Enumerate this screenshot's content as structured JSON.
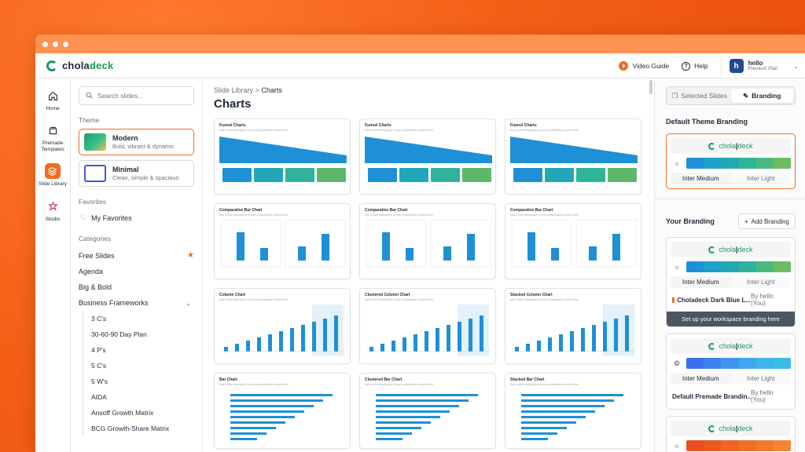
{
  "app": {
    "logo_prefix": "chola",
    "logo_suffix": "deck"
  },
  "topbar": {
    "video_guide": "Video Guide",
    "help": "Help",
    "user_initial": "h",
    "user_name": "hello",
    "user_plan": "Premium Plan"
  },
  "rail": [
    {
      "label": "Home",
      "icon": "home-icon",
      "glyph": "⌂"
    },
    {
      "label": "Premade Templates",
      "icon": "templates-icon",
      "glyph": "❐"
    },
    {
      "label": "Slide Library",
      "icon": "layers-icon",
      "glyph": "≋"
    },
    {
      "label": "Studio",
      "icon": "studio-icon",
      "glyph": "✺"
    }
  ],
  "filters": {
    "search_placeholder": "Search slides..",
    "theme_heading": "Theme",
    "themes": [
      {
        "name": "Modern",
        "desc": "Bold, vibrant & dynamic"
      },
      {
        "name": "Minimal",
        "desc": "Clean, simple & spacious"
      }
    ],
    "favorites_heading": "Favorites",
    "my_favorites": "My Favorites",
    "categories_heading": "Categories",
    "categories": [
      "Free Slides",
      "Agenda",
      "Big & Bold",
      "Business Frameworks"
    ],
    "subcategories": [
      "3 C's",
      "30-60-90 Day Plan",
      "4 P's",
      "5 C's",
      "5 W's",
      "AIDA",
      "Ansoff Growth Matrix",
      "BCG Growth-Share Matrix"
    ]
  },
  "main": {
    "breadcrumb_parent": "Slide Library",
    "breadcrumb_sep": ">",
    "breadcrumb_current": "Charts",
    "title": "Charts",
    "slides": [
      {
        "title": "Funnel Charts",
        "sub": "Add a brief description of your presentation content here",
        "kind": "funnel"
      },
      {
        "title": "Funnel Charts",
        "sub": "Add a brief description of your presentation content here",
        "kind": "funnel"
      },
      {
        "title": "Funnel Charts",
        "sub": "Add a brief description of your presentation content here",
        "kind": "funnel"
      },
      {
        "title": "Comparative Bar Chart",
        "sub": "Add a brief description of your presentation content here",
        "kind": "compbar"
      },
      {
        "title": "Comparative Bar Chart",
        "sub": "Add a brief description of your presentation content here",
        "kind": "compbar"
      },
      {
        "title": "Comparative Bar Chart",
        "sub": "Add a brief description of your presentation content here",
        "kind": "compbar"
      },
      {
        "title": "Column Chart",
        "sub": "Add a brief description of your presentation content here",
        "kind": "column"
      },
      {
        "title": "Clustered Column Chart",
        "sub": "Add a brief description of your presentation content here",
        "kind": "column"
      },
      {
        "title": "Stacked Column Chart",
        "sub": "Add a brief description of your presentation content here",
        "kind": "column"
      },
      {
        "title": "Bar Chart",
        "sub": "Add a brief description of your presentation content here",
        "kind": "hbar"
      },
      {
        "title": "Clustered Bar Chart",
        "sub": "Add a brief description of your presentation content here",
        "kind": "hbar"
      },
      {
        "title": "Stacked Bar Chart",
        "sub": "Add a brief description of your presentation content here",
        "kind": "hbar"
      }
    ]
  },
  "right": {
    "tab_selected": "Selected Slides",
    "tab_branding": "Branding",
    "default_heading": "Default Theme Branding",
    "your_heading": "Your Branding",
    "add_branding": "Add Branding",
    "font_primary": "Inter Medium",
    "font_secondary": "Inter Light",
    "logo_left": "chola",
    "logo_right": "deck",
    "brand1_name": "Choladeck Dark Blue L...",
    "brand1_by": "By hello (You)",
    "brand1_tooltip": "Set up your workspace branding here",
    "brand2_name": "Default Premade Brandin...",
    "brand2_by": "By hello (You)"
  },
  "colors": {
    "accent": "#f26b1d",
    "brand_green": "#1b9a5e",
    "chart_blue": "#1e90d6"
  }
}
